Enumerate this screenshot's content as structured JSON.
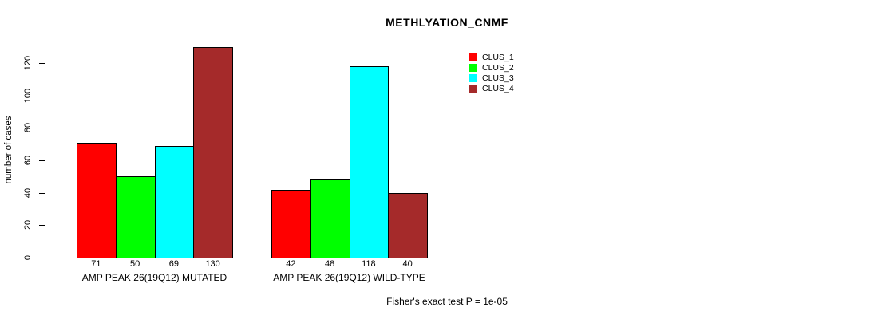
{
  "chart_data": {
    "type": "bar",
    "title": "METHLYATION_CNMF",
    "xlabel": "",
    "ylabel": "number of cases",
    "ylim": [
      0,
      130
    ],
    "yticks": [
      0,
      20,
      40,
      60,
      80,
      100,
      120
    ],
    "grid": false,
    "legend_position": "top-right",
    "categories": [
      "CLUS_1",
      "CLUS_2",
      "CLUS_3",
      "CLUS_4"
    ],
    "series_colors": [
      "#FF0000",
      "#00FF00",
      "#00FFFF",
      "#A52A2A"
    ],
    "groups": [
      {
        "label": "AMP PEAK 26(19Q12) MUTATED",
        "values": [
          71,
          50,
          69,
          130
        ],
        "value_labels": [
          "71",
          "50",
          "69",
          "130"
        ]
      },
      {
        "label": "AMP PEAK 26(19Q12) WILD-TYPE",
        "values": [
          42,
          48,
          118,
          40
        ],
        "value_labels": [
          "42",
          "48",
          "118",
          "40"
        ]
      }
    ],
    "legend_entries": [
      {
        "label": "CLUS_1",
        "color": "#FF0000"
      },
      {
        "label": "CLUS_2",
        "color": "#00FF00"
      },
      {
        "label": "CLUS_3",
        "color": "#00FFFF"
      },
      {
        "label": "CLUS_4",
        "color": "#A52A2A"
      }
    ],
    "annotation": "Fisher's exact test P = 1e-05"
  }
}
